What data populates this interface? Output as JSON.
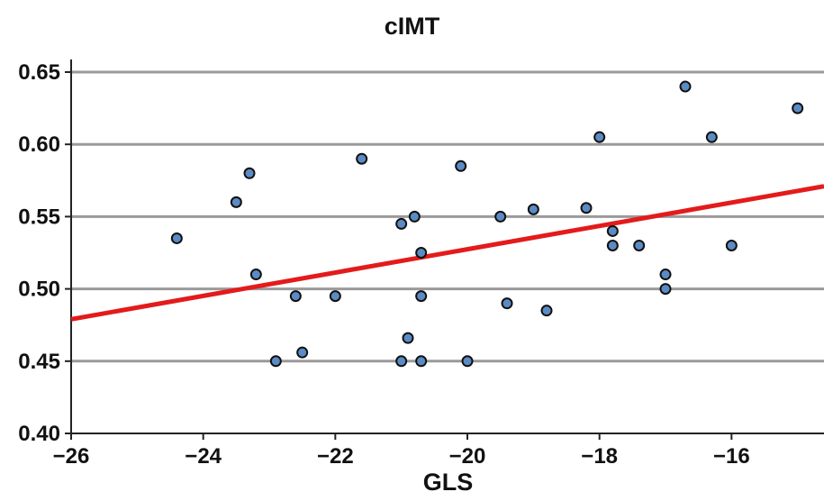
{
  "chart_data": {
    "type": "scatter",
    "title": "cIMT",
    "xlabel": "GLS",
    "ylabel": "",
    "xlim": [
      -26,
      -14.6
    ],
    "ylim": [
      0.4,
      0.65
    ],
    "x_ticks": [
      -26,
      -24,
      -22,
      -20,
      -18,
      -16
    ],
    "x_tick_labels": [
      "−26",
      "−24",
      "−22",
      "−20",
      "−18",
      "−16"
    ],
    "y_ticks": [
      0.4,
      0.45,
      0.5,
      0.55,
      0.6,
      0.65
    ],
    "y_tick_labels": [
      "0.40",
      "0.45",
      "0.50",
      "0.55",
      "0.60",
      "0.65"
    ],
    "grid": "horizontal",
    "colors": {
      "points": "#5b8bc4",
      "point_edge": "#111111",
      "trendline": "#e31b1b",
      "grid": "#9a9a9a",
      "axis": "#222222"
    },
    "series": [
      {
        "points": [
          [
            -24.4,
            0.535
          ],
          [
            -23.5,
            0.56
          ],
          [
            -23.3,
            0.58
          ],
          [
            -23.2,
            0.51
          ],
          [
            -22.9,
            0.45
          ],
          [
            -22.6,
            0.495
          ],
          [
            -22.5,
            0.456
          ],
          [
            -22.0,
            0.495
          ],
          [
            -21.6,
            0.59
          ],
          [
            -21.0,
            0.545
          ],
          [
            -21.0,
            0.45
          ],
          [
            -20.9,
            0.466
          ],
          [
            -20.8,
            0.55
          ],
          [
            -20.7,
            0.525
          ],
          [
            -20.7,
            0.495
          ],
          [
            -20.7,
            0.45
          ],
          [
            -20.1,
            0.585
          ],
          [
            -20.0,
            0.45
          ],
          [
            -19.5,
            0.55
          ],
          [
            -19.4,
            0.49
          ],
          [
            -19.0,
            0.555
          ],
          [
            -18.8,
            0.485
          ],
          [
            -18.2,
            0.556
          ],
          [
            -18.0,
            0.605
          ],
          [
            -17.8,
            0.54
          ],
          [
            -17.8,
            0.53
          ],
          [
            -17.4,
            0.53
          ],
          [
            -17.0,
            0.51
          ],
          [
            -17.0,
            0.5
          ],
          [
            -16.7,
            0.64
          ],
          [
            -16.3,
            0.605
          ],
          [
            -16.0,
            0.53
          ],
          [
            -15.0,
            0.625
          ]
        ]
      }
    ],
    "trendline": {
      "x": [
        -26,
        -14.6
      ],
      "y": [
        0.479,
        0.571
      ]
    }
  }
}
